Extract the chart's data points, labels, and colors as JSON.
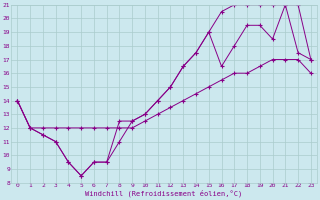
{
  "xlabel": "Windchill (Refroidissement éolien,°C)",
  "xlim": [
    -0.5,
    23.5
  ],
  "ylim": [
    8,
    21
  ],
  "xticks": [
    0,
    1,
    2,
    3,
    4,
    5,
    6,
    7,
    8,
    9,
    10,
    11,
    12,
    13,
    14,
    15,
    16,
    17,
    18,
    19,
    20,
    21,
    22,
    23
  ],
  "yticks": [
    8,
    9,
    10,
    11,
    12,
    13,
    14,
    15,
    16,
    17,
    18,
    19,
    20,
    21
  ],
  "line_color": "#880088",
  "bg_color": "#cce8ee",
  "grid_color": "#aacccc",
  "line1_x": [
    0,
    1,
    2,
    3,
    4,
    5,
    6,
    7,
    8,
    9,
    10,
    11,
    12,
    13,
    14,
    15,
    16,
    17,
    18,
    19,
    20,
    21,
    22,
    23
  ],
  "line1_y": [
    14,
    12,
    11.5,
    11,
    9.5,
    8.5,
    9.5,
    9.5,
    12.5,
    12.5,
    13,
    14,
    15,
    16.5,
    17.5,
    19,
    20.5,
    21,
    21,
    21,
    21,
    21,
    21,
    17
  ],
  "line2_x": [
    0,
    1,
    2,
    3,
    4,
    5,
    6,
    7,
    8,
    9,
    10,
    11,
    12,
    13,
    14,
    15,
    16,
    17,
    18,
    19,
    20,
    21,
    22,
    23
  ],
  "line2_y": [
    14,
    12,
    12,
    12,
    12,
    12,
    12,
    12,
    12,
    12,
    12.5,
    13,
    13.5,
    14,
    14.5,
    15,
    15.5,
    16,
    16,
    16.5,
    17,
    17,
    17,
    16
  ],
  "line3_x": [
    0,
    1,
    2,
    3,
    4,
    5,
    6,
    7,
    8,
    9,
    10,
    11,
    12,
    13,
    14,
    15,
    16,
    17,
    18,
    19,
    20,
    21,
    22,
    23
  ],
  "line3_y": [
    14,
    12,
    11.5,
    11,
    9.5,
    8.5,
    9.5,
    9.5,
    11,
    12.5,
    13,
    14,
    15,
    16.5,
    17.5,
    19,
    16.5,
    18,
    19.5,
    19.5,
    18.5,
    21,
    17.5,
    17
  ]
}
